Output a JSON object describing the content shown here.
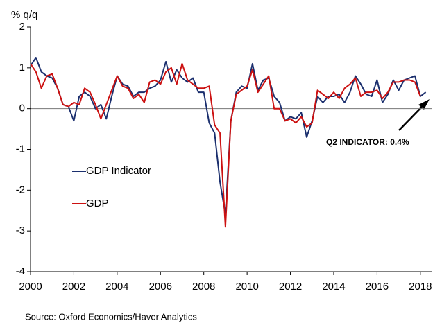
{
  "chart_data": {
    "type": "line",
    "y_label": "% q/q",
    "source": "Source: Oxford Economics/Haver Analytics",
    "annotation": "Q2 INDICATOR:  0.4%",
    "x": [
      2000,
      2000.25,
      2000.5,
      2000.75,
      2001,
      2001.25,
      2001.5,
      2001.75,
      2002,
      2002.25,
      2002.5,
      2002.75,
      2003,
      2003.25,
      2003.5,
      2003.75,
      2004,
      2004.25,
      2004.5,
      2004.75,
      2005,
      2005.25,
      2005.5,
      2005.75,
      2006,
      2006.25,
      2006.5,
      2006.75,
      2007,
      2007.25,
      2007.5,
      2007.75,
      2008,
      2008.25,
      2008.5,
      2008.75,
      2009,
      2009.25,
      2009.5,
      2009.75,
      2010,
      2010.25,
      2010.5,
      2010.75,
      2011,
      2011.25,
      2011.5,
      2011.75,
      2012,
      2012.25,
      2012.5,
      2012.75,
      2013,
      2013.25,
      2013.5,
      2013.75,
      2014,
      2014.25,
      2014.5,
      2014.75,
      2015,
      2015.25,
      2015.5,
      2015.75,
      2016,
      2016.25,
      2016.5,
      2016.75,
      2017,
      2017.25,
      2017.5,
      2017.75,
      2018,
      2018.25
    ],
    "series": [
      {
        "name": "GDP Indicator",
        "color": "#1b2f6e",
        "values": [
          1.05,
          1.25,
          0.9,
          0.8,
          0.75,
          0.5,
          0.1,
          0.05,
          -0.3,
          0.3,
          0.4,
          0.3,
          0.0,
          0.1,
          -0.25,
          0.3,
          0.8,
          0.6,
          0.55,
          0.3,
          0.4,
          0.4,
          0.5,
          0.55,
          0.7,
          1.15,
          0.65,
          0.95,
          0.75,
          0.65,
          0.75,
          0.4,
          0.4,
          -0.35,
          -0.6,
          -1.8,
          -2.6,
          -0.3,
          0.4,
          0.55,
          0.5,
          1.1,
          0.45,
          0.7,
          0.75,
          0.3,
          0.15,
          -0.3,
          -0.2,
          -0.25,
          -0.1,
          -0.7,
          -0.3,
          0.3,
          0.15,
          0.3,
          0.3,
          0.35,
          0.15,
          0.4,
          0.8,
          0.6,
          0.35,
          0.3,
          0.7,
          0.15,
          0.35,
          0.7,
          0.45,
          0.7,
          0.75,
          0.8,
          0.3,
          0.4
        ]
      },
      {
        "name": "GDP",
        "color": "#cc1111",
        "values": [
          1.1,
          0.9,
          0.5,
          0.8,
          0.85,
          0.5,
          0.1,
          0.05,
          0.15,
          0.1,
          0.5,
          0.4,
          0.1,
          -0.25,
          0.1,
          0.45,
          0.8,
          0.55,
          0.5,
          0.25,
          0.35,
          0.15,
          0.65,
          0.7,
          0.6,
          0.9,
          1.0,
          0.6,
          1.1,
          0.7,
          0.6,
          0.5,
          0.5,
          0.55,
          -0.4,
          -0.6,
          -2.9,
          -0.3,
          0.35,
          0.45,
          0.55,
          0.95,
          0.4,
          0.6,
          0.8,
          0.0,
          0.0,
          -0.3,
          -0.25,
          -0.35,
          -0.2,
          -0.45,
          -0.35,
          0.45,
          0.35,
          0.25,
          0.4,
          0.25,
          0.5,
          0.6,
          0.75,
          0.3,
          0.4,
          0.4,
          0.45,
          0.25,
          0.4,
          0.65,
          0.65,
          0.7,
          0.7,
          0.65,
          0.3,
          null
        ]
      }
    ],
    "xlim": [
      2000,
      2018.55
    ],
    "xticks": [
      2000,
      2002,
      2004,
      2006,
      2008,
      2010,
      2012,
      2014,
      2016,
      2018
    ],
    "ylim": [
      -4,
      2
    ],
    "yticks": [
      2,
      1,
      0,
      -1,
      -2,
      -3,
      -4
    ],
    "legend": "left"
  }
}
